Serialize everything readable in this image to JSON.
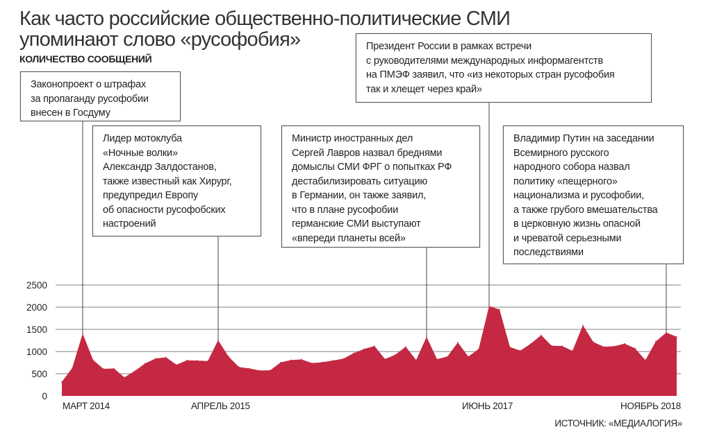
{
  "chart_data": {
    "type": "area",
    "title": "Как часто российские общественно-политические СМИ",
    "title_line2": "упоминают слово «русофобия»",
    "ylabel": "КОЛИЧЕСТВО СООБЩЕНИЙ",
    "ylim": [
      0,
      2500
    ],
    "yticks": [
      "0",
      "500",
      "1000",
      "1500",
      "2000",
      "2500"
    ],
    "xticks": [
      {
        "index": 0,
        "label": "МАРТ 2014"
      },
      {
        "index": 13,
        "label": "АПРЕЛЬ 2015"
      },
      {
        "index": 41,
        "label": "ИЮНЬ 2017"
      },
      {
        "index": 58,
        "label": "НОЯБРЬ 2018"
      }
    ],
    "grid": true,
    "color": "#c42842",
    "values": [
      317,
      630,
      1406,
      808,
      609,
      620,
      417,
      562,
      734,
      844,
      870,
      703,
      802,
      797,
      786,
      1255,
      886,
      651,
      620,
      573,
      578,
      755,
      808,
      823,
      740,
      760,
      797,
      838,
      963,
      1057,
      1125,
      833,
      927,
      1109,
      808,
      1333,
      828,
      886,
      1208,
      886,
      1057,
      2026,
      1948,
      1099,
      1021,
      1177,
      1370,
      1130,
      1125,
      1016,
      1594,
      1214,
      1109,
      1120,
      1177,
      1073,
      808,
      1229,
      1427,
      1333
    ],
    "annotations": [
      {
        "index": 2,
        "text": "Законопроект о штрафах\nза пропаганду русофобии\nвнесен в Госдуму"
      },
      {
        "index": 15,
        "text": "Лидер мотоклуба\n«Ночные волки»\nАлександр Залдостанов,\nтакже известный как Хирург,\nпредупредил Европу\nоб опасности русофобских\nнастроений"
      },
      {
        "index": 35,
        "text": "Министр иностранных дел\nСергей Лавров назвал бреднями\nдомыслы СМИ ФРГ о попытках РФ\nдестабилизировать ситуацию\nв Германии, он также заявил,\nчто в плане русофобии\nгерманские СМИ выступают\n«впереди планеты всей»"
      },
      {
        "index": 41,
        "text": "Президент России в рамках встречи\nс руководителями международных информагентств\nна ПМЭФ заявил, что «из некоторых стран русофобия\nтак и хлещет через край»"
      },
      {
        "index": 58,
        "text": "Владимир Путин на заседании\nВсемирного русского\nнародного собора назвал\nполитику «пещерного»\nнационализма и русофобии,\nа также грубого вмешательства\nв церковную жизнь опасной\nи чреватой серьезными\nпоследствиями"
      }
    ],
    "source": "ИСТОЧНИК: «МЕДИАЛОГИЯ»"
  }
}
